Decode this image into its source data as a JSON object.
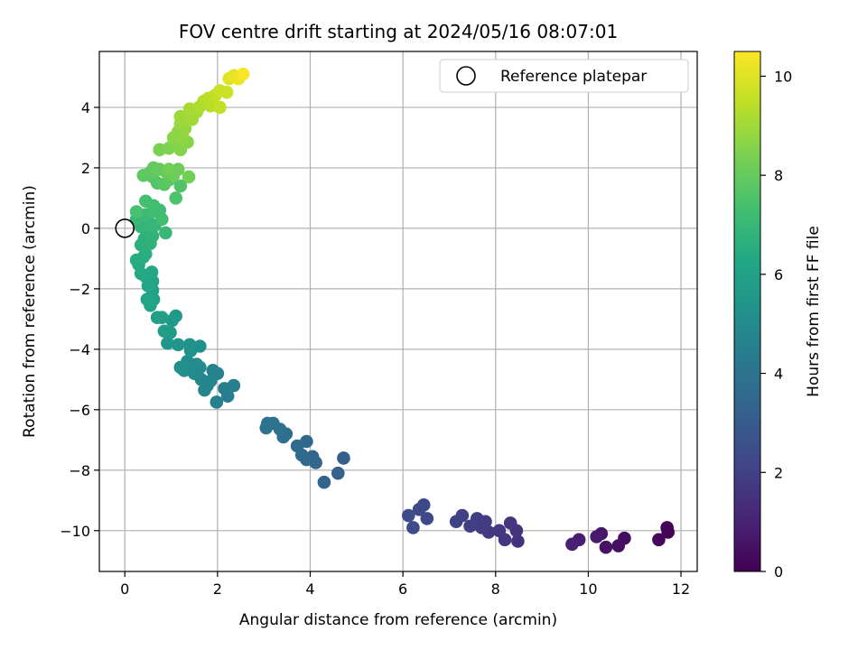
{
  "chart_data": {
    "type": "scatter",
    "title": "FOV centre drift starting at 2024/05/16 08:07:01",
    "xlabel": "Angular distance from reference (arcmin)",
    "ylabel": "Rotation from reference (arcmin)",
    "xlim": [
      -0.55,
      12.35
    ],
    "ylim": [
      -11.35,
      5.85
    ],
    "xticks": [
      0,
      2,
      4,
      6,
      8,
      10,
      12
    ],
    "yticks": [
      -10,
      -8,
      -6,
      -4,
      -2,
      0,
      2,
      4
    ],
    "xtick_labels": [
      "0",
      "2",
      "4",
      "6",
      "8",
      "10",
      "12"
    ],
    "ytick_labels": [
      "−10",
      "−8",
      "−6",
      "−4",
      "−2",
      "0",
      "2",
      "4"
    ],
    "grid": true,
    "legend": {
      "position": "top-right",
      "label": "Reference platepar"
    },
    "reference_point": {
      "x": 0,
      "y": 0
    },
    "colorbar": {
      "label": "Hours from first FF file",
      "range": [
        0,
        10.5
      ],
      "ticks": [
        0,
        2,
        4,
        6,
        8,
        10
      ],
      "tick_labels": [
        "0",
        "2",
        "4",
        "6",
        "8",
        "10"
      ],
      "colormap": "viridis"
    },
    "series": [
      {
        "points": [
          {
            "x": 11.72,
            "y": -10.05,
            "h": 0.05
          },
          {
            "x": 11.7,
            "y": -9.9,
            "h": 0.1
          },
          {
            "x": 11.52,
            "y": -10.3,
            "h": 0.2
          },
          {
            "x": 10.78,
            "y": -10.25,
            "h": 0.35
          },
          {
            "x": 10.65,
            "y": -10.5,
            "h": 0.45
          },
          {
            "x": 10.38,
            "y": -10.55,
            "h": 0.55
          },
          {
            "x": 10.28,
            "y": -10.1,
            "h": 0.65
          },
          {
            "x": 10.18,
            "y": -10.2,
            "h": 0.75
          },
          {
            "x": 9.8,
            "y": -10.3,
            "h": 0.85
          },
          {
            "x": 9.65,
            "y": -10.45,
            "h": 0.95
          },
          {
            "x": 8.48,
            "y": -10.35,
            "h": 1.5
          },
          {
            "x": 8.45,
            "y": -10.0,
            "h": 1.55
          },
          {
            "x": 8.32,
            "y": -9.75,
            "h": 1.6
          },
          {
            "x": 8.2,
            "y": -10.3,
            "h": 1.65
          },
          {
            "x": 8.08,
            "y": -10.0,
            "h": 1.7
          },
          {
            "x": 7.85,
            "y": -10.05,
            "h": 1.75
          },
          {
            "x": 7.78,
            "y": -9.7,
            "h": 1.8
          },
          {
            "x": 7.7,
            "y": -9.9,
            "h": 1.85
          },
          {
            "x": 7.6,
            "y": -9.6,
            "h": 1.9
          },
          {
            "x": 7.45,
            "y": -9.85,
            "h": 1.95
          },
          {
            "x": 7.28,
            "y": -9.5,
            "h": 2.0
          },
          {
            "x": 7.15,
            "y": -9.7,
            "h": 2.05
          },
          {
            "x": 6.52,
            "y": -9.6,
            "h": 2.25
          },
          {
            "x": 6.45,
            "y": -9.15,
            "h": 2.3
          },
          {
            "x": 6.35,
            "y": -9.3,
            "h": 2.35
          },
          {
            "x": 6.22,
            "y": -9.9,
            "h": 2.4
          },
          {
            "x": 6.12,
            "y": -9.5,
            "h": 2.45
          },
          {
            "x": 4.72,
            "y": -7.6,
            "h": 3.2
          },
          {
            "x": 4.6,
            "y": -8.1,
            "h": 3.25
          },
          {
            "x": 4.3,
            "y": -8.4,
            "h": 3.35
          },
          {
            "x": 4.12,
            "y": -7.75,
            "h": 3.45
          },
          {
            "x": 4.05,
            "y": -7.55,
            "h": 3.5
          },
          {
            "x": 3.92,
            "y": -7.65,
            "h": 3.55
          },
          {
            "x": 3.92,
            "y": -7.05,
            "h": 3.55
          },
          {
            "x": 3.82,
            "y": -7.5,
            "h": 3.6
          },
          {
            "x": 3.72,
            "y": -7.2,
            "h": 3.65
          },
          {
            "x": 3.48,
            "y": -6.8,
            "h": 3.75
          },
          {
            "x": 3.42,
            "y": -6.9,
            "h": 3.8
          },
          {
            "x": 3.35,
            "y": -6.65,
            "h": 3.85
          },
          {
            "x": 3.2,
            "y": -6.45,
            "h": 3.9
          },
          {
            "x": 3.08,
            "y": -6.45,
            "h": 3.95
          },
          {
            "x": 3.05,
            "y": -6.6,
            "h": 4.0
          },
          {
            "x": 2.35,
            "y": -5.2,
            "h": 4.4
          },
          {
            "x": 2.22,
            "y": -5.55,
            "h": 4.45
          },
          {
            "x": 2.15,
            "y": -5.3,
            "h": 4.5
          },
          {
            "x": 1.98,
            "y": -5.75,
            "h": 4.55
          },
          {
            "x": 2.0,
            "y": -4.8,
            "h": 4.6
          },
          {
            "x": 1.9,
            "y": -4.7,
            "h": 4.65
          },
          {
            "x": 1.85,
            "y": -5.05,
            "h": 4.7
          },
          {
            "x": 1.78,
            "y": -5.2,
            "h": 4.75
          },
          {
            "x": 1.72,
            "y": -5.35,
            "h": 4.8
          },
          {
            "x": 1.65,
            "y": -5.0,
            "h": 4.85
          },
          {
            "x": 1.62,
            "y": -4.6,
            "h": 4.9
          },
          {
            "x": 1.55,
            "y": -4.5,
            "h": 4.95
          },
          {
            "x": 1.5,
            "y": -4.8,
            "h": 5.0
          },
          {
            "x": 1.42,
            "y": -4.65,
            "h": 5.05
          },
          {
            "x": 1.35,
            "y": -4.4,
            "h": 5.1
          },
          {
            "x": 1.28,
            "y": -4.7,
            "h": 5.15
          },
          {
            "x": 1.2,
            "y": -4.6,
            "h": 5.2
          },
          {
            "x": 1.62,
            "y": -3.9,
            "h": 5.2
          },
          {
            "x": 1.42,
            "y": -4.05,
            "h": 5.25
          },
          {
            "x": 1.4,
            "y": -3.85,
            "h": 5.3
          },
          {
            "x": 1.15,
            "y": -3.85,
            "h": 5.4
          },
          {
            "x": 0.92,
            "y": -3.8,
            "h": 5.5
          },
          {
            "x": 1.1,
            "y": -2.9,
            "h": 5.6
          },
          {
            "x": 1.02,
            "y": -3.05,
            "h": 5.65
          },
          {
            "x": 0.98,
            "y": -3.45,
            "h": 5.7
          },
          {
            "x": 0.85,
            "y": -3.4,
            "h": 5.75
          },
          {
            "x": 0.8,
            "y": -2.95,
            "h": 5.8
          },
          {
            "x": 0.7,
            "y": -2.95,
            "h": 5.85
          },
          {
            "x": 0.62,
            "y": -2.35,
            "h": 5.95
          },
          {
            "x": 0.6,
            "y": -2.05,
            "h": 6.0
          },
          {
            "x": 0.6,
            "y": -1.75,
            "h": 6.05
          },
          {
            "x": 0.55,
            "y": -2.55,
            "h": 6.1
          },
          {
            "x": 0.48,
            "y": -2.35,
            "h": 6.15
          },
          {
            "x": 0.5,
            "y": -1.9,
            "h": 6.2
          },
          {
            "x": 0.45,
            "y": -1.6,
            "h": 6.25
          },
          {
            "x": 0.58,
            "y": -1.45,
            "h": 6.3
          },
          {
            "x": 0.35,
            "y": -1.5,
            "h": 6.35
          },
          {
            "x": 0.3,
            "y": -1.2,
            "h": 6.4
          },
          {
            "x": 0.25,
            "y": -1.05,
            "h": 6.45
          },
          {
            "x": 0.4,
            "y": -0.95,
            "h": 6.5
          },
          {
            "x": 0.45,
            "y": -0.85,
            "h": 6.55
          },
          {
            "x": 0.35,
            "y": -0.55,
            "h": 6.6
          },
          {
            "x": 0.42,
            "y": -0.35,
            "h": 6.65
          },
          {
            "x": 0.55,
            "y": -0.5,
            "h": 6.7
          },
          {
            "x": 0.6,
            "y": -0.25,
            "h": 6.75
          },
          {
            "x": 0.48,
            "y": -0.1,
            "h": 6.8
          },
          {
            "x": 0.35,
            "y": 0.05,
            "h": 6.85
          },
          {
            "x": 0.55,
            "y": 0.15,
            "h": 6.9
          },
          {
            "x": 0.65,
            "y": 0.1,
            "h": 6.95
          },
          {
            "x": 0.88,
            "y": -0.15,
            "h": 7.0
          },
          {
            "x": 0.25,
            "y": 0.3,
            "h": 7.05
          },
          {
            "x": 0.45,
            "y": 0.45,
            "h": 7.1
          },
          {
            "x": 0.6,
            "y": 0.55,
            "h": 7.15
          },
          {
            "x": 0.75,
            "y": 0.6,
            "h": 7.2
          },
          {
            "x": 0.8,
            "y": 0.3,
            "h": 7.25
          },
          {
            "x": 0.62,
            "y": 0.75,
            "h": 7.3
          },
          {
            "x": 0.45,
            "y": 0.9,
            "h": 7.35
          },
          {
            "x": 0.25,
            "y": 0.55,
            "h": 7.4
          },
          {
            "x": 1.1,
            "y": 1.0,
            "h": 7.5
          },
          {
            "x": 1.2,
            "y": 1.4,
            "h": 7.6
          },
          {
            "x": 0.7,
            "y": 1.5,
            "h": 7.65
          },
          {
            "x": 0.6,
            "y": 1.7,
            "h": 7.7
          },
          {
            "x": 0.85,
            "y": 1.45,
            "h": 7.75
          },
          {
            "x": 0.95,
            "y": 1.6,
            "h": 7.8
          },
          {
            "x": 0.4,
            "y": 1.75,
            "h": 7.85
          },
          {
            "x": 0.55,
            "y": 1.85,
            "h": 7.9
          },
          {
            "x": 0.62,
            "y": 2.0,
            "h": 7.95
          },
          {
            "x": 0.75,
            "y": 1.95,
            "h": 8.0
          },
          {
            "x": 0.9,
            "y": 1.85,
            "h": 8.05
          },
          {
            "x": 1.05,
            "y": 1.75,
            "h": 8.1
          },
          {
            "x": 1.15,
            "y": 1.95,
            "h": 8.15
          },
          {
            "x": 0.95,
            "y": 1.95,
            "h": 8.2
          },
          {
            "x": 1.38,
            "y": 1.7,
            "h": 8.25
          },
          {
            "x": 0.75,
            "y": 2.6,
            "h": 8.4
          },
          {
            "x": 0.95,
            "y": 2.65,
            "h": 8.45
          },
          {
            "x": 1.1,
            "y": 2.75,
            "h": 8.5
          },
          {
            "x": 1.2,
            "y": 2.6,
            "h": 8.55
          },
          {
            "x": 1.35,
            "y": 2.85,
            "h": 8.6
          },
          {
            "x": 1.05,
            "y": 3.0,
            "h": 8.65
          },
          {
            "x": 1.15,
            "y": 3.2,
            "h": 8.7
          },
          {
            "x": 1.25,
            "y": 3.0,
            "h": 8.75
          },
          {
            "x": 1.3,
            "y": 3.3,
            "h": 8.8
          },
          {
            "x": 1.2,
            "y": 3.45,
            "h": 8.85
          },
          {
            "x": 1.35,
            "y": 3.55,
            "h": 8.9
          },
          {
            "x": 1.2,
            "y": 3.7,
            "h": 8.95
          },
          {
            "x": 1.45,
            "y": 3.6,
            "h": 9.0
          },
          {
            "x": 1.55,
            "y": 3.85,
            "h": 9.05
          },
          {
            "x": 1.4,
            "y": 3.95,
            "h": 9.1
          },
          {
            "x": 1.6,
            "y": 4.0,
            "h": 9.2
          },
          {
            "x": 1.7,
            "y": 4.2,
            "h": 9.3
          },
          {
            "x": 1.85,
            "y": 4.05,
            "h": 9.35
          },
          {
            "x": 1.8,
            "y": 4.3,
            "h": 9.4
          },
          {
            "x": 1.95,
            "y": 4.4,
            "h": 9.5
          },
          {
            "x": 2.05,
            "y": 4.0,
            "h": 9.55
          },
          {
            "x": 2.05,
            "y": 4.55,
            "h": 9.65
          },
          {
            "x": 2.2,
            "y": 4.5,
            "h": 9.7
          },
          {
            "x": 2.25,
            "y": 4.95,
            "h": 10.0
          },
          {
            "x": 2.35,
            "y": 5.05,
            "h": 10.1
          },
          {
            "x": 2.45,
            "y": 4.95,
            "h": 10.2
          },
          {
            "x": 2.55,
            "y": 5.1,
            "h": 10.4
          }
        ]
      }
    ]
  }
}
